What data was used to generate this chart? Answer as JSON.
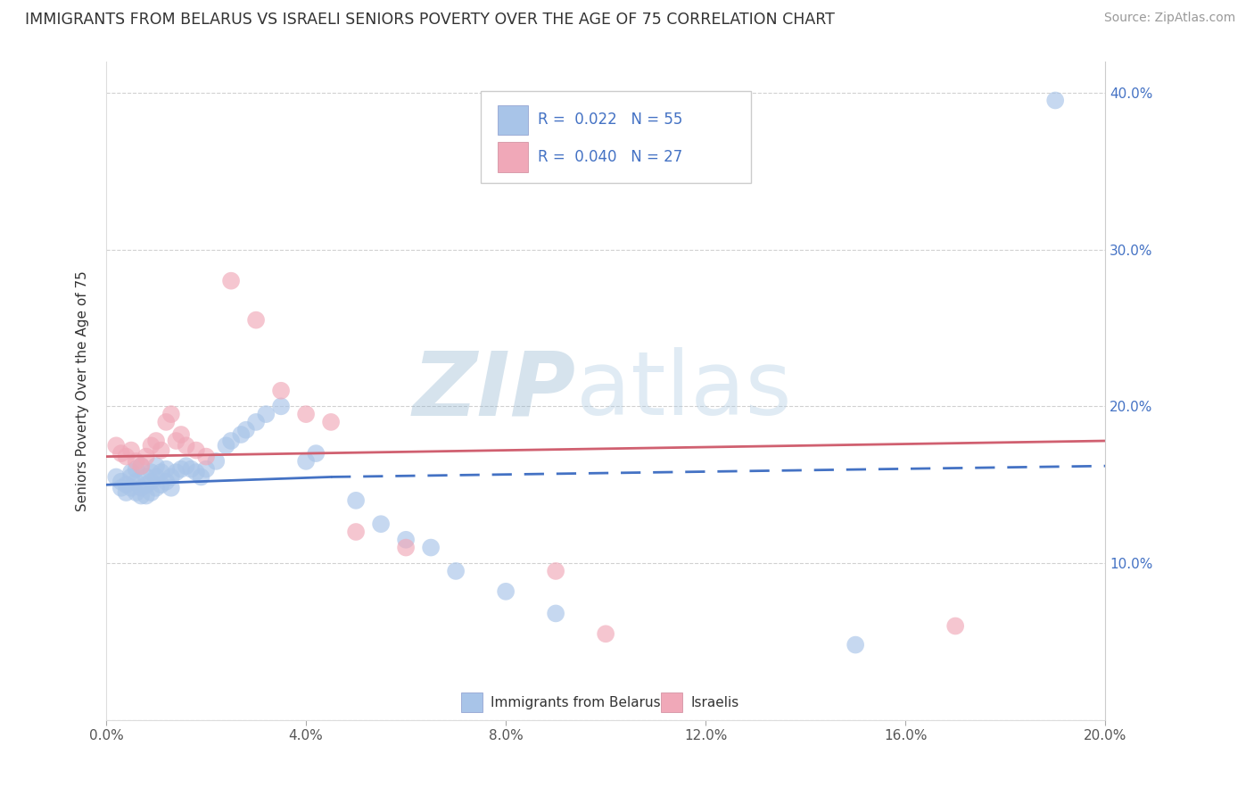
{
  "title": "IMMIGRANTS FROM BELARUS VS ISRAELI SENIORS POVERTY OVER THE AGE OF 75 CORRELATION CHART",
  "source": "Source: ZipAtlas.com",
  "ylabel": "Seniors Poverty Over the Age of 75",
  "xlim": [
    0.0,
    0.2
  ],
  "ylim": [
    0.0,
    0.42
  ],
  "xticks": [
    0.0,
    0.04,
    0.08,
    0.12,
    0.16,
    0.2
  ],
  "xtick_labels": [
    "0.0%",
    "4.0%",
    "8.0%",
    "12.0%",
    "16.0%",
    "20.0%"
  ],
  "yticks": [
    0.0,
    0.1,
    0.2,
    0.3,
    0.4
  ],
  "ytick_labels_right": [
    "",
    "10.0%",
    "20.0%",
    "30.0%",
    "40.0%"
  ],
  "legend_r_color": "#4472c4",
  "blue_color": "#a8c4e8",
  "pink_color": "#f0a8b8",
  "blue_line_color": "#4472c4",
  "pink_line_color": "#d06070",
  "grid_color": "#cccccc",
  "watermark_zip": "ZIP",
  "watermark_atlas": "atlas",
  "background_color": "#ffffff",
  "blue_scatter_x": [
    0.002,
    0.003,
    0.003,
    0.004,
    0.004,
    0.005,
    0.005,
    0.005,
    0.006,
    0.006,
    0.006,
    0.007,
    0.007,
    0.007,
    0.008,
    0.008,
    0.008,
    0.009,
    0.009,
    0.009,
    0.01,
    0.01,
    0.01,
    0.011,
    0.011,
    0.012,
    0.012,
    0.013,
    0.013,
    0.014,
    0.015,
    0.016,
    0.017,
    0.018,
    0.019,
    0.02,
    0.022,
    0.024,
    0.025,
    0.027,
    0.028,
    0.03,
    0.032,
    0.035,
    0.04,
    0.042,
    0.05,
    0.055,
    0.06,
    0.065,
    0.07,
    0.08,
    0.09,
    0.15,
    0.19
  ],
  "blue_scatter_y": [
    0.155,
    0.152,
    0.148,
    0.15,
    0.145,
    0.158,
    0.155,
    0.148,
    0.16,
    0.152,
    0.145,
    0.162,
    0.148,
    0.143,
    0.155,
    0.15,
    0.143,
    0.158,
    0.152,
    0.145,
    0.162,
    0.155,
    0.148,
    0.158,
    0.15,
    0.16,
    0.152,
    0.155,
    0.148,
    0.158,
    0.16,
    0.162,
    0.16,
    0.158,
    0.155,
    0.16,
    0.165,
    0.175,
    0.178,
    0.182,
    0.185,
    0.19,
    0.195,
    0.2,
    0.165,
    0.17,
    0.14,
    0.125,
    0.115,
    0.11,
    0.095,
    0.082,
    0.068,
    0.048,
    0.395
  ],
  "pink_scatter_x": [
    0.002,
    0.003,
    0.004,
    0.005,
    0.006,
    0.007,
    0.008,
    0.009,
    0.01,
    0.011,
    0.012,
    0.013,
    0.014,
    0.015,
    0.016,
    0.018,
    0.02,
    0.025,
    0.03,
    0.035,
    0.04,
    0.045,
    0.05,
    0.06,
    0.09,
    0.1,
    0.17
  ],
  "pink_scatter_y": [
    0.175,
    0.17,
    0.168,
    0.172,
    0.165,
    0.162,
    0.168,
    0.175,
    0.178,
    0.172,
    0.19,
    0.195,
    0.178,
    0.182,
    0.175,
    0.172,
    0.168,
    0.28,
    0.255,
    0.21,
    0.195,
    0.19,
    0.12,
    0.11,
    0.095,
    0.055,
    0.06
  ],
  "blue_solid_line": {
    "x0": 0.0,
    "x1": 0.045,
    "y0": 0.15,
    "y1": 0.155
  },
  "blue_dash_line": {
    "x0": 0.045,
    "x1": 0.2,
    "y0": 0.155,
    "y1": 0.162
  },
  "pink_line": {
    "x0": 0.0,
    "x1": 0.2,
    "y0": 0.168,
    "y1": 0.178
  }
}
